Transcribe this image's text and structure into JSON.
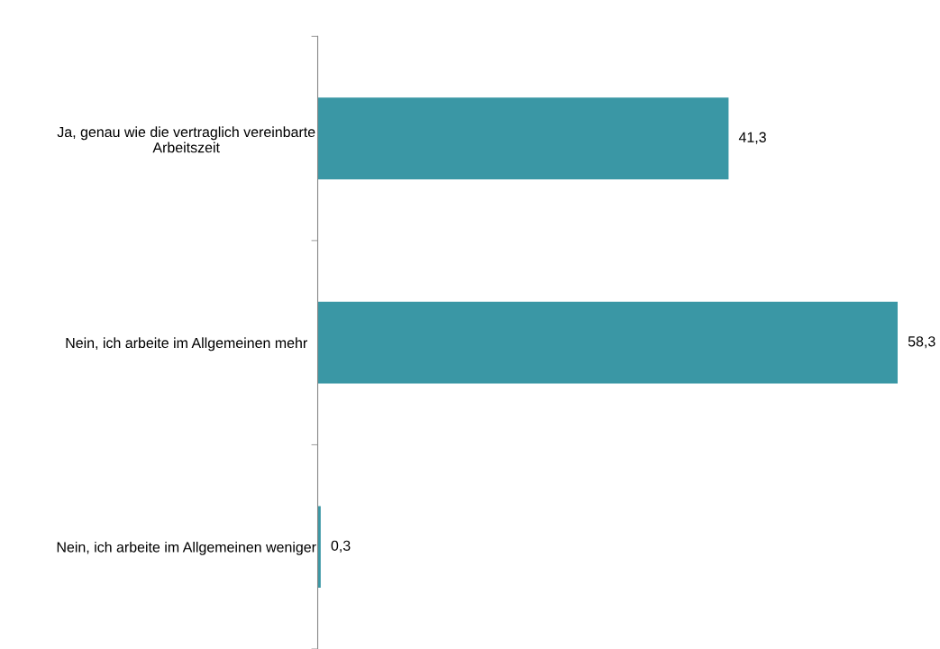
{
  "chart_data": {
    "type": "bar",
    "orientation": "horizontal",
    "categories": [
      "Ja, genau wie die vertraglich vereinbarte\nArbeitszeit",
      "Nein, ich arbeite im Allgemeinen mehr",
      "Nein, ich arbeite im Allgemeinen weniger"
    ],
    "values": [
      41.3,
      58.3,
      0.3
    ],
    "value_labels": [
      "41,3",
      "58,3",
      "0,3"
    ],
    "color": "#3a97a5",
    "tick_labels": "y",
    "grid": false,
    "legend": false
  }
}
